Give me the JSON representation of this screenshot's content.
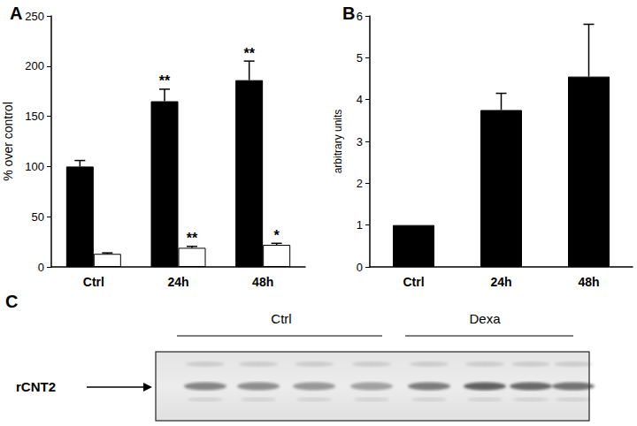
{
  "chart_data": [
    {
      "type": "bar",
      "title": "A",
      "categories": [
        "Ctrl",
        "24h",
        "48h"
      ],
      "ylabel": "% over control",
      "ylim": [
        0,
        250
      ],
      "yticks": [
        0,
        50,
        100,
        150,
        200,
        250
      ],
      "series": [
        {
          "color": "#000000",
          "values": [
            100,
            165,
            186
          ],
          "errors": [
            6,
            12,
            19
          ],
          "significance": [
            null,
            "**",
            "**"
          ]
        },
        {
          "color": "#ffffff",
          "values": [
            13,
            19,
            22
          ],
          "errors": [
            1,
            1.5,
            1.5
          ],
          "significance": [
            null,
            "**",
            "*"
          ]
        }
      ]
    },
    {
      "type": "bar",
      "title": "B",
      "categories": [
        "Ctrl",
        "24h",
        "48h"
      ],
      "ylabel": "arbitrary units",
      "ylim": [
        0,
        6
      ],
      "yticks": [
        0,
        1,
        2,
        3,
        4,
        5,
        6
      ],
      "color": "#000000",
      "values": [
        1,
        3.75,
        4.55
      ],
      "errors": [
        null,
        0.4,
        1.25
      ]
    }
  ],
  "blot": {
    "title": "C",
    "groups": [
      "Ctrl",
      "Dexa"
    ],
    "band_label": "rCNT2"
  }
}
